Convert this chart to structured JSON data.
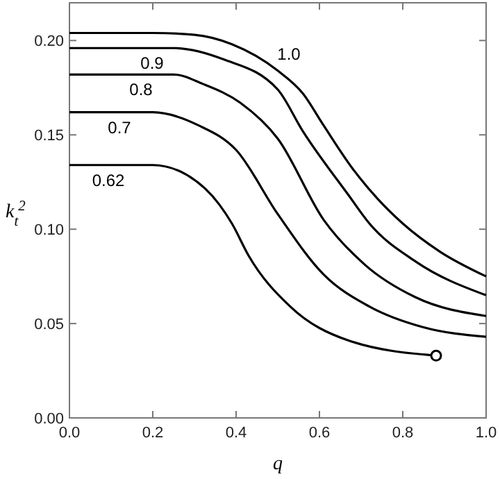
{
  "chart_data": {
    "type": "line",
    "xlabel": "q",
    "ylabel": "k$_{t}$$^{2}$",
    "xlim": [
      0,
      1
    ],
    "ylim": [
      0,
      0.22
    ],
    "xticks": [
      {
        "value": 0,
        "label": "0.0"
      },
      {
        "value": 0.2,
        "label": "0.2"
      },
      {
        "value": 0.4,
        "label": "0.4"
      },
      {
        "value": 0.6,
        "label": "0.6"
      },
      {
        "value": 0.8,
        "label": "0.8"
      },
      {
        "value": 1,
        "label": "1.0"
      }
    ],
    "yticks": [
      {
        "value": 0,
        "label": "0.00"
      },
      {
        "value": 0.05,
        "label": "0.05"
      },
      {
        "value": 0.1,
        "label": "0.10"
      },
      {
        "value": 0.15,
        "label": "0.15"
      },
      {
        "value": 0.2,
        "label": "0.20"
      }
    ],
    "grid": false,
    "marker": "none",
    "line_style": "solid",
    "series": [
      {
        "name": "1.0",
        "color": "#000000",
        "x": [
          0,
          0.2,
          0.3,
          0.39,
          0.5,
          0.56,
          0.61,
          0.68,
          0.74,
          0.8,
          0.89,
          1
        ],
        "values": [
          0.204,
          0.204,
          0.203,
          0.198,
          0.184,
          0.172,
          0.155,
          0.132,
          0.116,
          0.103,
          0.088,
          0.075
        ]
      },
      {
        "name": "0.9",
        "color": "#000000",
        "x": [
          0,
          0.25,
          0.37,
          0.5,
          0.56,
          0.67,
          0.72,
          0.83,
          1
        ],
        "values": [
          0.196,
          0.196,
          0.19,
          0.174,
          0.152,
          0.118,
          0.103,
          0.083,
          0.065
        ]
      },
      {
        "name": "0.8",
        "color": "#000000",
        "x": [
          0,
          0.25,
          0.32,
          0.41,
          0.5,
          0.61,
          0.71,
          0.83,
          1
        ],
        "values": [
          0.182,
          0.182,
          0.177,
          0.167,
          0.148,
          0.105,
          0.081,
          0.064,
          0.054
        ]
      },
      {
        "name": "0.7",
        "color": "#000000",
        "x": [
          0,
          0.2,
          0.31,
          0.4,
          0.5,
          0.61,
          0.72,
          0.85,
          1
        ],
        "values": [
          0.162,
          0.162,
          0.155,
          0.142,
          0.108,
          0.076,
          0.059,
          0.048,
          0.043
        ]
      },
      {
        "name": "0.62",
        "color": "#000000",
        "x": [
          0,
          0.2,
          0.28,
          0.36,
          0.39,
          0.43,
          0.53,
          0.67,
          0.88
        ],
        "values": [
          0.134,
          0.134,
          0.129,
          0.113,
          0.103,
          0.086,
          0.059,
          0.041,
          0.033
        ]
      },
      {
        "type": "scatter",
        "marker": "circle",
        "color": "#000000",
        "x": [
          0.88
        ],
        "values": [
          0.033
        ]
      }
    ]
  }
}
